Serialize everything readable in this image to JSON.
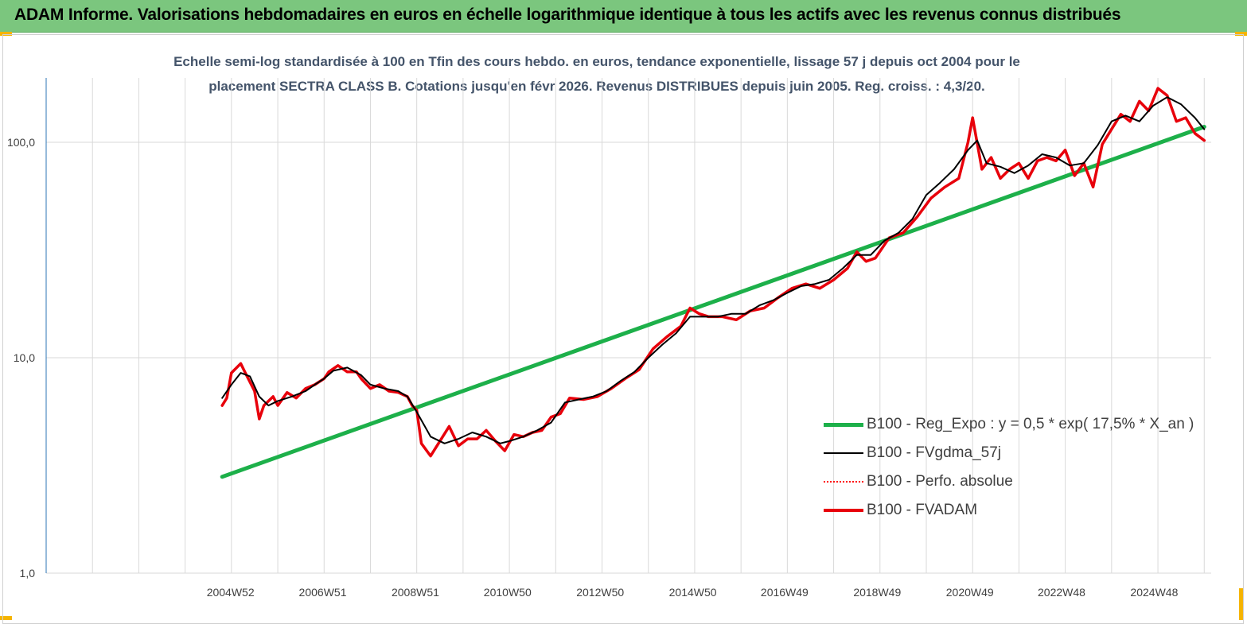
{
  "banner": {
    "title": "ADAM Informe. Valorisations hebdomadaires en euros en échelle logarithmique identique à tous les actifs avec les revenus connus distribués"
  },
  "subtitle": {
    "line1": "Echelle semi-log standardisée à 100 en Tfin des cours hebdo. en euros, tendance exponentielle, lissage 57 j depuis oct 2004 pour le",
    "line2": "placement SECTRA CLASS B. Cotations jusqu'en févr 2026.  Revenus DISTRIBUES depuis juin 2005. Reg. croiss. : 4,3/20."
  },
  "colors": {
    "banner": "#7bc67e",
    "regression": "#1db04a",
    "smoothed": "#000000",
    "perf": "#ff0000",
    "fvadam": "#e8000b",
    "corner": "#f5b400",
    "axis_text": "#404040",
    "subtitle": "#44546a"
  },
  "legend": [
    {
      "label": "B100 - Reg_Expo : y = 0,5 * exp( 17,5% *  X_an )",
      "series": "regression"
    },
    {
      "label": "B100 - FVgdma_57j",
      "series": "smoothed"
    },
    {
      "label": "B100 - Perfo. absolue",
      "series": "perf"
    },
    {
      "label": "B100 - FVADAM",
      "series": "fvadam"
    }
  ],
  "chart_data": {
    "type": "line",
    "scale": "log",
    "ylim": [
      1,
      200
    ],
    "xlim": [
      2001.0,
      2026.15
    ],
    "y_ticks": [
      {
        "value": 1,
        "label": "1,0"
      },
      {
        "value": 10,
        "label": "10,0"
      },
      {
        "value": 100,
        "label": "100,0"
      }
    ],
    "x_ticks": [
      {
        "value": 2004.98,
        "label": "2004W52"
      },
      {
        "value": 2006.97,
        "label": "2006W51"
      },
      {
        "value": 2008.97,
        "label": "2008W51"
      },
      {
        "value": 2010.96,
        "label": "2010W50"
      },
      {
        "value": 2012.96,
        "label": "2012W50"
      },
      {
        "value": 2014.96,
        "label": "2014W50"
      },
      {
        "value": 2016.94,
        "label": "2016W49"
      },
      {
        "value": 2018.94,
        "label": "2018W49"
      },
      {
        "value": 2020.94,
        "label": "2020W49"
      },
      {
        "value": 2022.92,
        "label": "2022W48"
      },
      {
        "value": 2024.92,
        "label": "2024W48"
      }
    ],
    "grid": {
      "vertical": true,
      "horizontal": true
    },
    "legend_position": "bottom-right",
    "series": [
      {
        "key": "regression",
        "name": "B100 - Reg_Expo : y = 0,5 * exp( 17,5% *  X_an )",
        "x": [
          2004.8,
          2026.0
        ],
        "y": [
          2.8,
          118
        ]
      },
      {
        "key": "smoothed",
        "name": "B100 - FVgdma_57j",
        "x": [
          2004.8,
          2005.0,
          2005.2,
          2005.4,
          2005.6,
          2005.8,
          2006.0,
          2006.3,
          2006.6,
          2006.8,
          2007.0,
          2007.2,
          2007.5,
          2007.8,
          2008.0,
          2008.3,
          2008.6,
          2008.8,
          2009.0,
          2009.3,
          2009.6,
          2009.9,
          2010.2,
          2010.5,
          2010.8,
          2011.0,
          2011.3,
          2011.6,
          2011.9,
          2012.2,
          2012.5,
          2012.8,
          2013.1,
          2013.4,
          2013.7,
          2014.0,
          2014.3,
          2014.6,
          2014.9,
          2015.2,
          2015.5,
          2015.8,
          2016.1,
          2016.4,
          2016.7,
          2017.0,
          2017.3,
          2017.6,
          2017.9,
          2018.2,
          2018.5,
          2018.8,
          2019.1,
          2019.4,
          2019.7,
          2020.0,
          2020.3,
          2020.6,
          2020.9,
          2021.1,
          2021.3,
          2021.6,
          2021.9,
          2022.2,
          2022.5,
          2022.8,
          2023.1,
          2023.4,
          2023.7,
          2024.0,
          2024.3,
          2024.6,
          2024.9,
          2025.2,
          2025.5,
          2025.8,
          2026.0
        ],
        "y": [
          6.5,
          7.5,
          8.5,
          8.2,
          6.6,
          6.0,
          6.3,
          6.6,
          7.0,
          7.5,
          8.0,
          8.7,
          9.0,
          8.3,
          7.5,
          7.2,
          7.0,
          6.6,
          5.6,
          4.3,
          4.0,
          4.2,
          4.5,
          4.3,
          4.0,
          4.1,
          4.3,
          4.6,
          5.0,
          6.2,
          6.4,
          6.6,
          7.0,
          7.8,
          8.6,
          10.0,
          11.5,
          13.0,
          15.5,
          15.5,
          15.5,
          16.0,
          16.0,
          17.5,
          18.5,
          20.0,
          21.5,
          22.0,
          23.0,
          26.0,
          30.0,
          30.0,
          35.0,
          38.0,
          44.0,
          57.0,
          65.0,
          75.0,
          92.0,
          102,
          80.0,
          77.0,
          72.0,
          78.0,
          88.0,
          85.0,
          78.0,
          80.0,
          97.0,
          125,
          133,
          125,
          148,
          162,
          150,
          130,
          115
        ]
      },
      {
        "key": "fvadam",
        "name": "B100 - FVADAM",
        "x": [
          2004.8,
          2004.9,
          2005.0,
          2005.2,
          2005.3,
          2005.5,
          2005.6,
          2005.7,
          2005.9,
          2006.0,
          2006.2,
          2006.4,
          2006.6,
          2006.8,
          2007.0,
          2007.1,
          2007.3,
          2007.5,
          2007.7,
          2007.8,
          2008.0,
          2008.2,
          2008.4,
          2008.6,
          2008.8,
          2008.9,
          2009.0,
          2009.1,
          2009.3,
          2009.5,
          2009.7,
          2009.9,
          2010.1,
          2010.3,
          2010.5,
          2010.7,
          2010.9,
          2011.1,
          2011.3,
          2011.5,
          2011.7,
          2011.9,
          2012.1,
          2012.3,
          2012.6,
          2012.9,
          2013.2,
          2013.5,
          2013.8,
          2014.1,
          2014.4,
          2014.7,
          2014.9,
          2015.1,
          2015.3,
          2015.6,
          2015.9,
          2016.2,
          2016.5,
          2016.8,
          2017.1,
          2017.4,
          2017.7,
          2018.0,
          2018.3,
          2018.5,
          2018.7,
          2018.9,
          2019.2,
          2019.5,
          2019.8,
          2020.1,
          2020.4,
          2020.7,
          2020.9,
          2021.0,
          2021.2,
          2021.4,
          2021.6,
          2021.8,
          2022.0,
          2022.2,
          2022.4,
          2022.6,
          2022.8,
          2023.0,
          2023.2,
          2023.4,
          2023.6,
          2023.8,
          2024.0,
          2024.2,
          2024.4,
          2024.6,
          2024.8,
          2025.0,
          2025.2,
          2025.4,
          2025.6,
          2025.8,
          2026.0
        ],
        "y": [
          6.0,
          6.5,
          8.5,
          9.4,
          8.5,
          7.0,
          5.2,
          6.0,
          6.6,
          6.0,
          6.9,
          6.5,
          7.2,
          7.5,
          8.0,
          8.6,
          9.2,
          8.6,
          8.6,
          8.0,
          7.2,
          7.5,
          7.0,
          6.9,
          6.6,
          6.0,
          5.7,
          4.0,
          3.5,
          4.1,
          4.8,
          3.9,
          4.2,
          4.2,
          4.6,
          4.1,
          3.7,
          4.4,
          4.3,
          4.5,
          4.6,
          5.3,
          5.5,
          6.5,
          6.4,
          6.6,
          7.2,
          8.0,
          8.8,
          11.0,
          12.5,
          14.0,
          17.0,
          16.0,
          15.5,
          15.5,
          15.0,
          16.5,
          17.0,
          19.0,
          21.0,
          22.0,
          21.0,
          23.0,
          26.0,
          31.0,
          28.0,
          29.0,
          36.0,
          38.0,
          45.0,
          55.0,
          62.0,
          68.0,
          100,
          130,
          75.0,
          85.0,
          68.0,
          75.0,
          80.0,
          68.0,
          82.0,
          85.0,
          82.0,
          92.0,
          70.0,
          80.0,
          62.0,
          98.0,
          115,
          135,
          125,
          155,
          140,
          178,
          165,
          125,
          130,
          110,
          102
        ]
      }
    ]
  }
}
